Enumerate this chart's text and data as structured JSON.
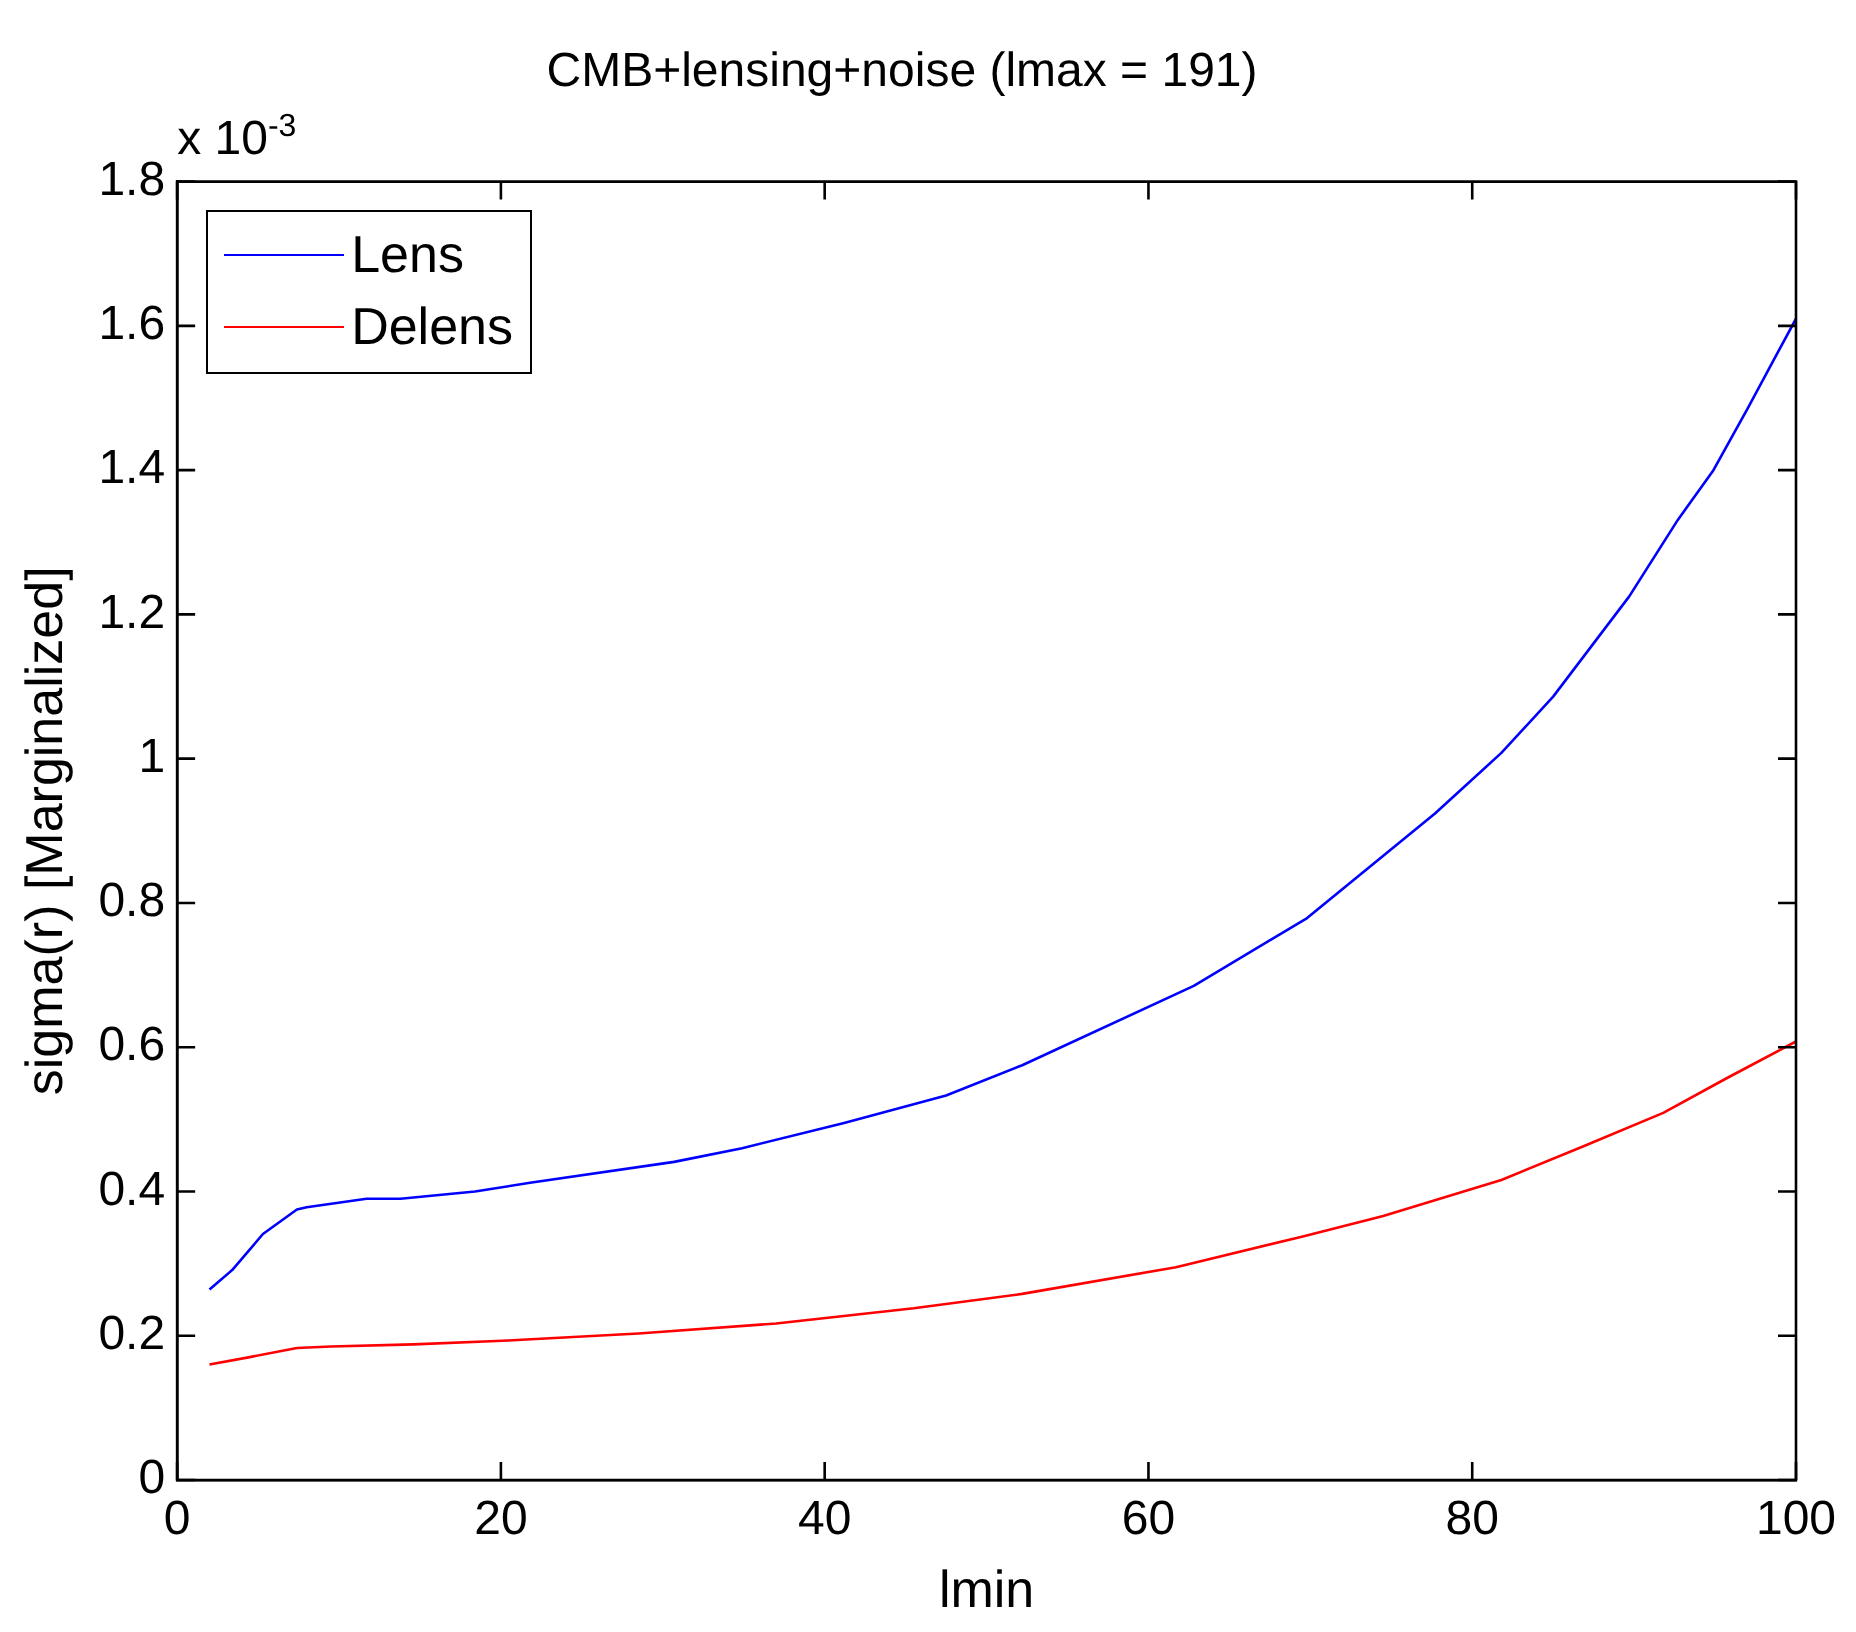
{
  "chart_data": {
    "type": "line",
    "title": "CMB+lensing+noise (lmax = 191)",
    "xlabel": "lmin",
    "ylabel": "sigma(r) [Marginalized]",
    "annotations": [
      "x 10$^{-3}$"
    ],
    "xlim": [
      0,
      100
    ],
    "xticks": [
      0,
      20,
      40,
      60,
      80,
      100
    ],
    "ylim": [
      0,
      1.8
    ],
    "yticks": [
      0,
      0.2,
      0.4,
      0.6,
      0.8,
      1,
      1.2,
      1.4,
      1.6,
      1.8
    ],
    "grid": false,
    "legend": "top left",
    "marker": "none",
    "line_style": "solid",
    "series": [
      {
        "name": "Lens",
        "color": "#0000ff",
        "x": [
          2,
          3.4,
          5.3,
          7.4,
          8,
          11.7,
          13.8,
          18.4,
          21.8,
          30.7,
          34.9,
          41.2,
          47.5,
          52.2,
          62.8,
          69.8,
          77.7,
          81.8,
          85,
          89.7,
          92.7,
          94.9,
          97,
          100
        ],
        "values": [
          0.264,
          0.291,
          0.341,
          0.375,
          0.378,
          0.39,
          0.39,
          0.4,
          0.412,
          0.441,
          0.46,
          0.495,
          0.533,
          0.575,
          0.685,
          0.779,
          0.924,
          1.008,
          1.086,
          1.225,
          1.331,
          1.4,
          1.485,
          1.61
        ]
      },
      {
        "name": "Delens",
        "color": "#ff0000",
        "x": [
          2,
          4.4,
          7.4,
          9.5,
          14.6,
          20.1,
          28.5,
          37,
          45.5,
          52.2,
          61.7,
          69.6,
          74.5,
          81.8,
          86.8,
          91.8,
          95.8,
          100
        ],
        "values": [
          0.16,
          0.17,
          0.183,
          0.185,
          0.188,
          0.193,
          0.203,
          0.217,
          0.238,
          0.258,
          0.295,
          0.338,
          0.366,
          0.416,
          0.462,
          0.509,
          0.558,
          0.608
        ]
      }
    ]
  }
}
